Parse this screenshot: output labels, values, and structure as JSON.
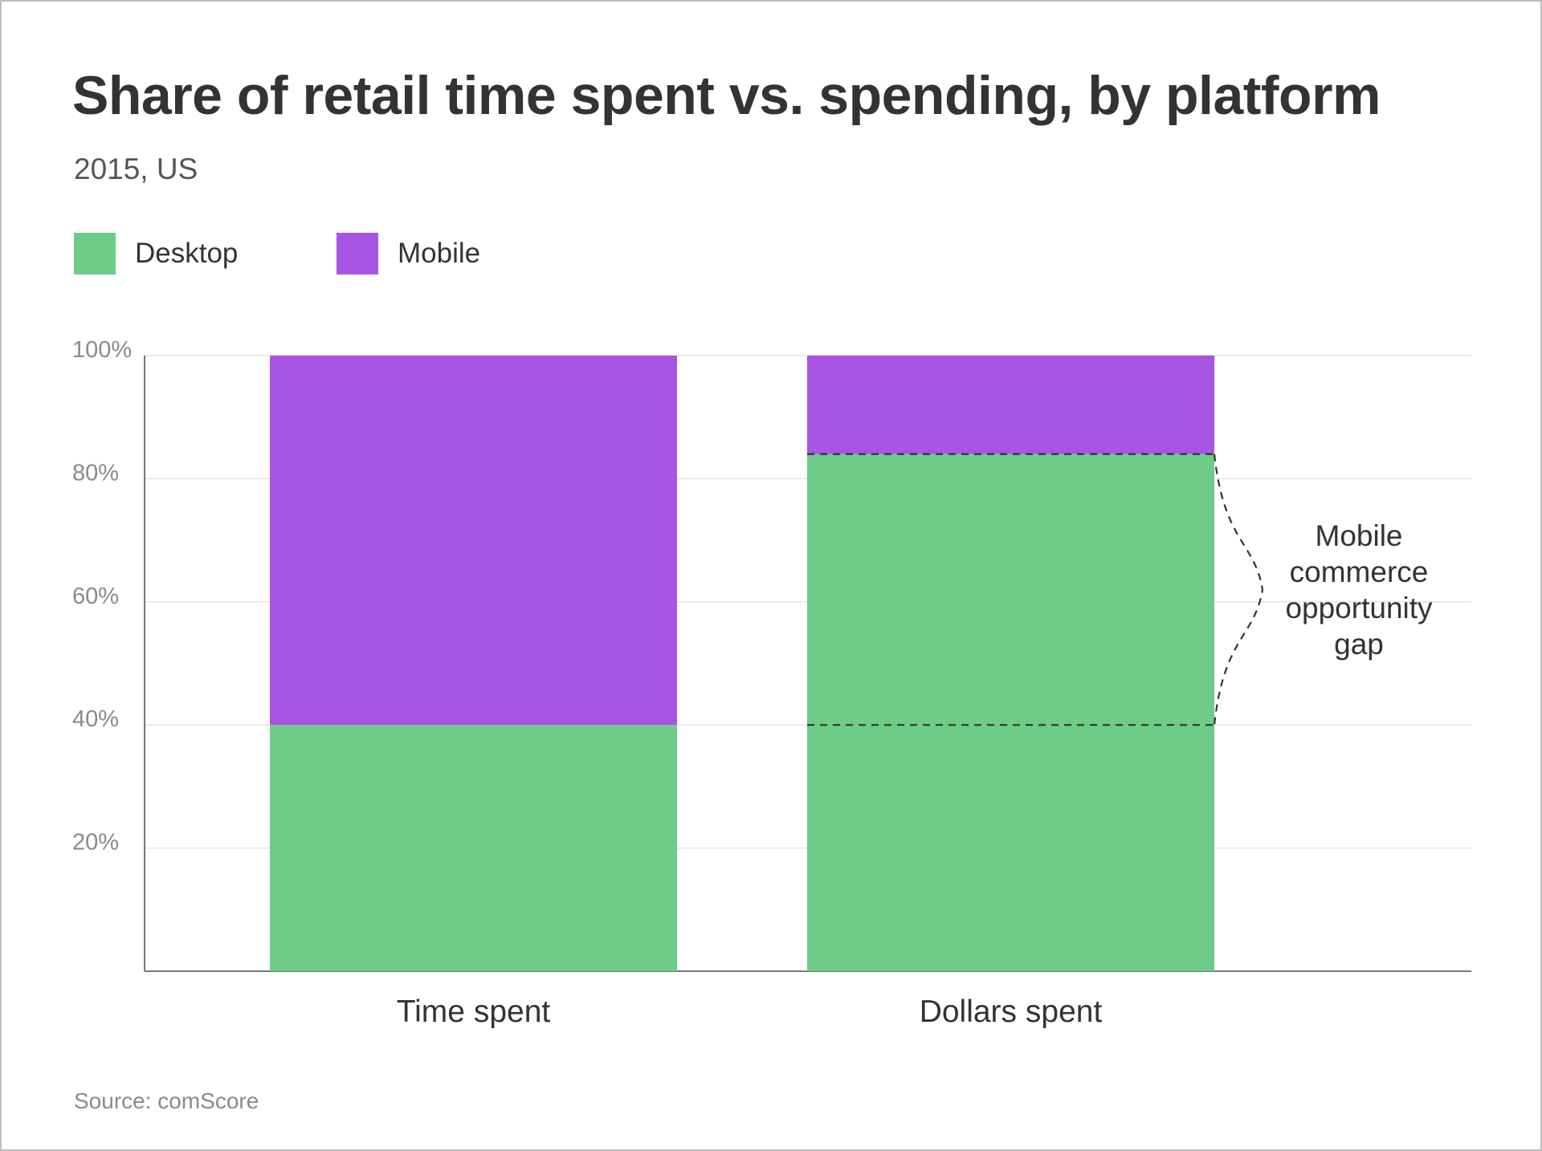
{
  "chart_data": {
    "type": "bar",
    "stacked": true,
    "title": "Share of retail time spent vs. spending, by platform",
    "subtitle": "2015, US",
    "categories": [
      "Time spent",
      "Dollars spent"
    ],
    "series": [
      {
        "name": "Desktop",
        "color": "#6dcc88",
        "values": [
          40,
          84
        ]
      },
      {
        "name": "Mobile",
        "color": "#a855e6",
        "values": [
          60,
          16
        ]
      }
    ],
    "ylim": [
      0,
      100
    ],
    "yticks": [
      20,
      40,
      60,
      80,
      100
    ],
    "ytick_labels": [
      "20%",
      "40%",
      "60%",
      "80%",
      "100%"
    ],
    "grid": true,
    "legend": "top-left",
    "annotation": {
      "lines": [
        "Mobile",
        "commerce",
        "opportunity",
        "gap"
      ],
      "from_value": 40,
      "to_value": 84,
      "category": "Dollars spent"
    },
    "source": "Source: comScore"
  }
}
